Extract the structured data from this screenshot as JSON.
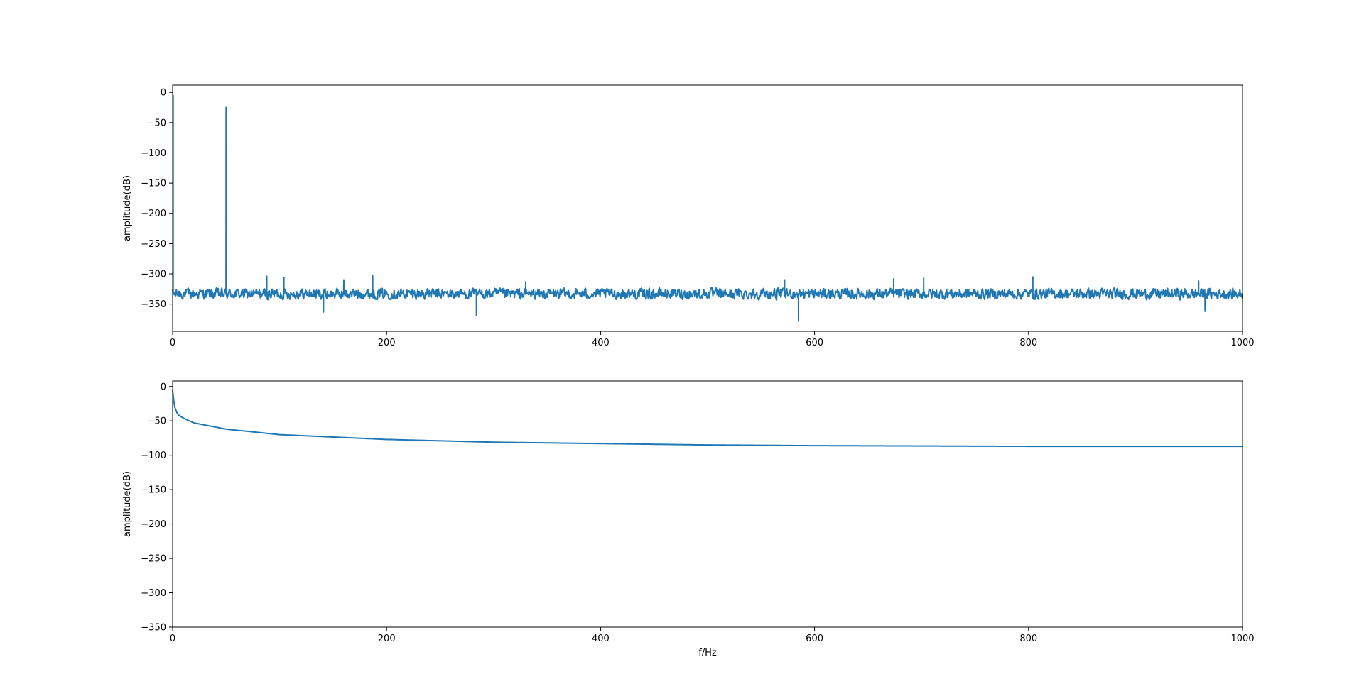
{
  "colors": {
    "series": "#1f77b4",
    "axes": "#000000",
    "background": "#ffffff"
  },
  "chart_data": [
    {
      "type": "line",
      "title": "",
      "xlabel": "",
      "ylabel": "amplitude(dB)",
      "xlim": [
        0,
        1000
      ],
      "ylim": [
        -395,
        12
      ],
      "xticks": [
        0,
        200,
        400,
        600,
        800,
        1000
      ],
      "yticks": [
        0,
        -50,
        -100,
        -150,
        -200,
        -250,
        -300,
        -350
      ],
      "grid": false,
      "legend": "none",
      "series": [
        {
          "baseline_db": -333,
          "peaks": [
            {
              "x": 0.5,
              "y": -5
            },
            {
              "x": 50,
              "y": -25
            },
            {
              "x": 88,
              "y": -304
            },
            {
              "x": 104,
              "y": -306
            },
            {
              "x": 160,
              "y": -310
            },
            {
              "x": 187,
              "y": -303
            },
            {
              "x": 330,
              "y": -313
            },
            {
              "x": 572,
              "y": -310
            },
            {
              "x": 674,
              "y": -308
            },
            {
              "x": 702,
              "y": -307
            },
            {
              "x": 804,
              "y": -305
            },
            {
              "x": 959,
              "y": -312
            }
          ],
          "dips": [
            {
              "x": 141,
              "y": -363
            },
            {
              "x": 284,
              "y": -369
            },
            {
              "x": 585,
              "y": -378
            },
            {
              "x": 965,
              "y": -362
            }
          ]
        }
      ]
    },
    {
      "type": "line",
      "title": "",
      "xlabel": "f/Hz",
      "ylabel": "amplitude(dB)",
      "xlim": [
        0,
        1000
      ],
      "ylim": [
        -350,
        8
      ],
      "xticks": [
        0,
        200,
        400,
        600,
        800,
        1000
      ],
      "yticks": [
        0,
        -50,
        -100,
        -150,
        -200,
        -250,
        -300,
        -350
      ],
      "grid": false,
      "legend": "none",
      "series": [
        {
          "x": [
            0,
            1,
            2,
            4,
            6,
            10,
            20,
            50,
            100,
            200,
            300,
            400,
            500,
            600,
            700,
            800,
            900,
            1000
          ],
          "y": [
            -5,
            -20,
            -30,
            -38,
            -42,
            -46,
            -53,
            -62,
            -70,
            -77,
            -81,
            -83,
            -85,
            -86,
            -86.5,
            -87,
            -87,
            -87
          ]
        }
      ]
    }
  ]
}
